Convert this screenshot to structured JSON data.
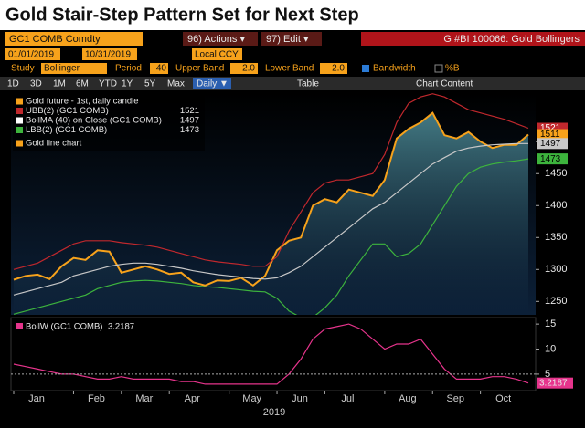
{
  "ui": {
    "title": "Gold Stair-Step Pattern Set for Next Step",
    "security": "GC1 COMB Comdty",
    "actions": "96) Actions ▾",
    "edit": "97) Edit ▾",
    "ticker_title": "G #BI 100066: Gold Bollingers",
    "start_date": "01/01/2019",
    "end_date": "10/31/2019",
    "currency": "Local CCY",
    "study_label": "Study",
    "study": "Bollinger",
    "period_label": "Period",
    "period": "40",
    "upper_label": "Upper Band",
    "upper": "2.0",
    "lower_label": "Lower Band",
    "lower": "2.0",
    "bandwidth": "Bandwidth",
    "percent_b": "%B",
    "periods": [
      "1D",
      "3D",
      "1M",
      "6M",
      "YTD",
      "1Y",
      "5Y",
      "Max"
    ],
    "frequency": "Daily ▼",
    "table": "Table",
    "chart_content": "Chart Content"
  },
  "chart_data": [
    {
      "type": "line",
      "categories": [
        "Jan",
        null,
        null,
        null,
        null,
        "Feb",
        null,
        null,
        null,
        "Mar",
        null,
        null,
        null,
        "Apr",
        null,
        null,
        null,
        null,
        "May",
        null,
        null,
        null,
        "Jun",
        null,
        null,
        null,
        "Jul",
        null,
        null,
        null,
        null,
        "Aug",
        null,
        null,
        null,
        "Sep",
        null,
        null,
        null,
        "Oct",
        null,
        null,
        null,
        null
      ],
      "xlabel": "2019",
      "ylim": [
        1229,
        1576
      ],
      "yticks": [
        1250,
        1300,
        1350,
        1400,
        1450,
        1500
      ],
      "legend_extra": "Gold line chart",
      "series": [
        {
          "name": "Gold future - 1st, daily candle",
          "color": "#f7a21b",
          "values": [
            1284,
            1290,
            1292,
            1285,
            1305,
            1318,
            1315,
            1330,
            1328,
            1295,
            1300,
            1305,
            1300,
            1293,
            1295,
            1280,
            1275,
            1283,
            1282,
            1287,
            1275,
            1290,
            1330,
            1345,
            1350,
            1400,
            1410,
            1405,
            1425,
            1420,
            1415,
            1440,
            1505,
            1520,
            1530,
            1545,
            1510,
            1505,
            1515,
            1500,
            1490,
            1495,
            1495,
            1511
          ]
        },
        {
          "name": "UBB(2) (GC1 COMB)",
          "color": "#c0282d",
          "values": [
            1300,
            1305,
            1310,
            1320,
            1330,
            1340,
            1345,
            1345,
            1345,
            1342,
            1340,
            1338,
            1335,
            1330,
            1325,
            1320,
            1315,
            1312,
            1310,
            1308,
            1305,
            1305,
            1320,
            1360,
            1390,
            1420,
            1435,
            1440,
            1440,
            1445,
            1450,
            1480,
            1530,
            1560,
            1570,
            1575,
            1570,
            1560,
            1550,
            1545,
            1540,
            1535,
            1528,
            1521
          ]
        },
        {
          "name": "BollMA (40)  on Close (GC1 COMB)",
          "color": "#c8c8c8",
          "values": [
            1260,
            1265,
            1270,
            1275,
            1280,
            1290,
            1295,
            1300,
            1305,
            1308,
            1310,
            1310,
            1308,
            1305,
            1302,
            1298,
            1295,
            1292,
            1290,
            1288,
            1286,
            1285,
            1287,
            1295,
            1305,
            1320,
            1335,
            1350,
            1365,
            1380,
            1395,
            1405,
            1420,
            1435,
            1450,
            1465,
            1475,
            1485,
            1490,
            1493,
            1495,
            1496,
            1497,
            1497
          ]
        },
        {
          "name": "LBB(2) (GC1 COMB)",
          "color": "#3db43d",
          "values": [
            1230,
            1235,
            1240,
            1245,
            1250,
            1255,
            1260,
            1270,
            1275,
            1280,
            1282,
            1283,
            1282,
            1280,
            1278,
            1275,
            1273,
            1272,
            1270,
            1268,
            1266,
            1265,
            1255,
            1235,
            1225,
            1225,
            1240,
            1260,
            1290,
            1315,
            1340,
            1340,
            1320,
            1325,
            1340,
            1370,
            1400,
            1430,
            1450,
            1460,
            1465,
            1468,
            1470,
            1473
          ]
        }
      ]
    },
    {
      "type": "line",
      "ylim": [
        1.7,
        16.3
      ],
      "yticks": [
        5,
        10,
        15
      ],
      "series": [
        {
          "name": "BollW (GC1 COMB)",
          "color": "#e6348c",
          "values": [
            7,
            6.5,
            6,
            5.5,
            5,
            5,
            4.5,
            4,
            4,
            4.5,
            4,
            4,
            4,
            4,
            3.5,
            3.5,
            3,
            3,
            3,
            3,
            3,
            3,
            3,
            5,
            8,
            12,
            14,
            14.5,
            15,
            14,
            12,
            10,
            11,
            11,
            12,
            9,
            6,
            4,
            4,
            4,
            4.5,
            4.5,
            4,
            3.2187
          ]
        }
      ]
    }
  ]
}
